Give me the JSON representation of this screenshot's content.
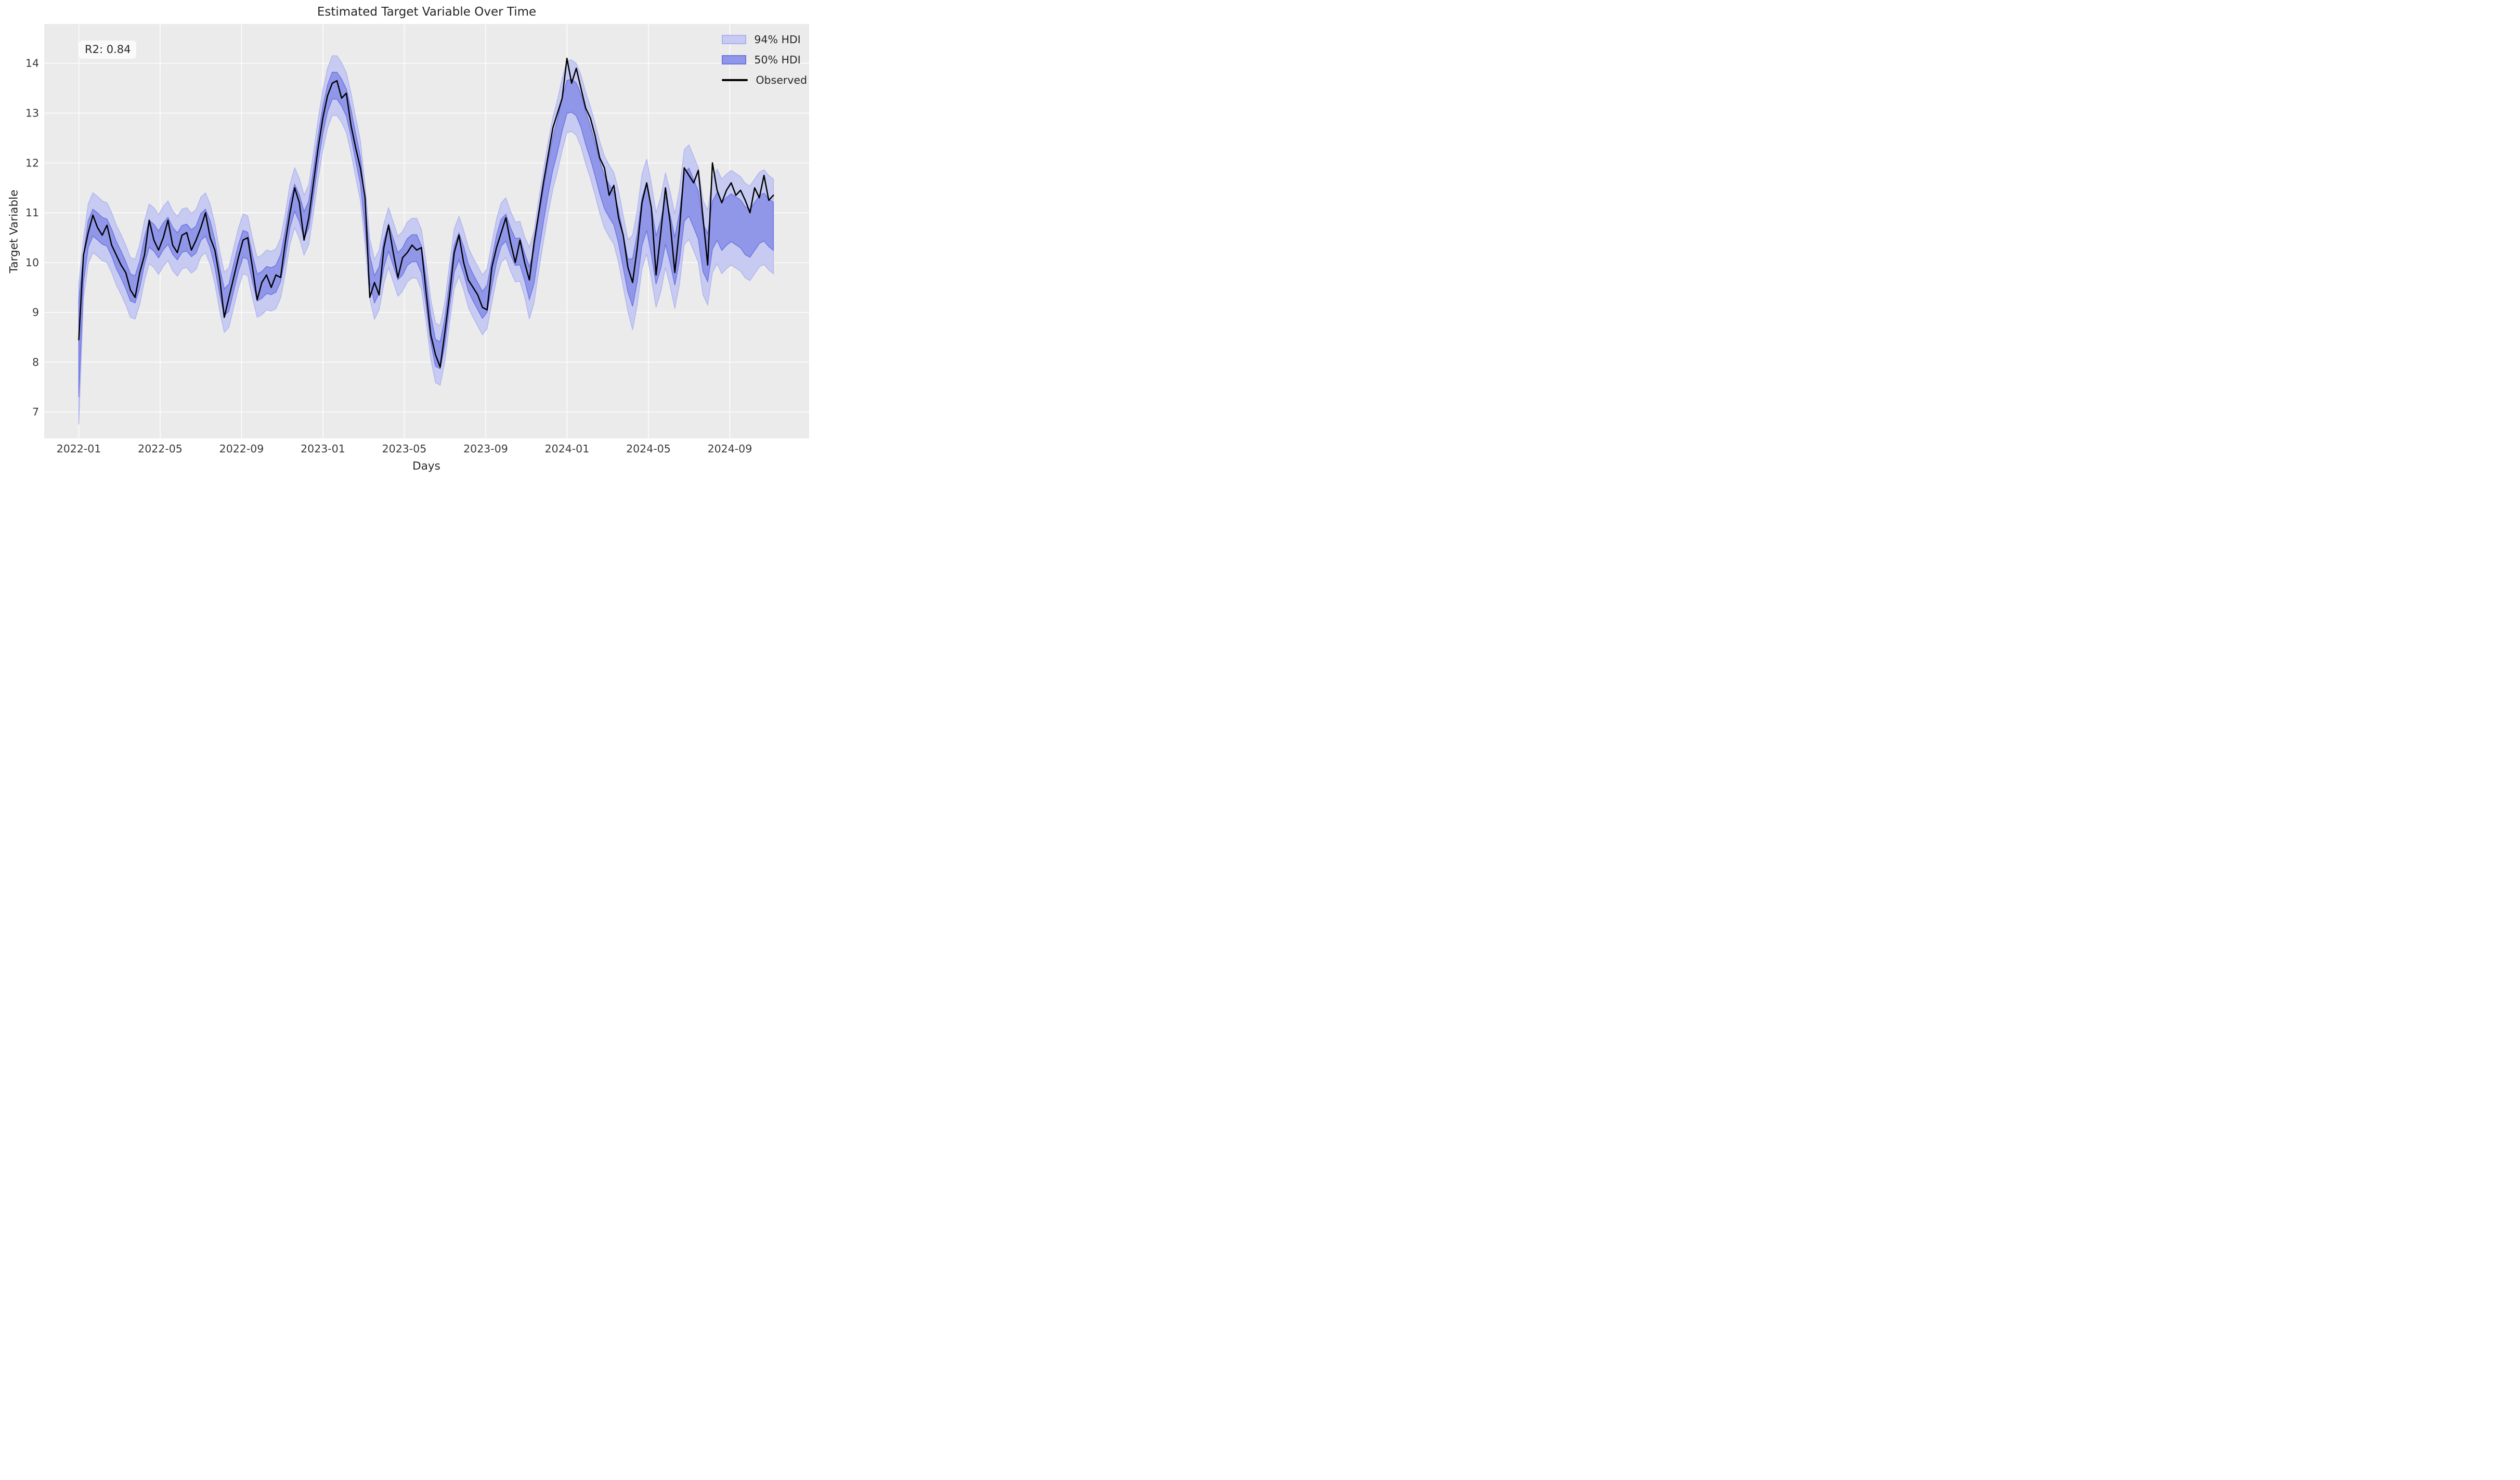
{
  "chart_data": {
    "type": "line-with-hdi-bands",
    "title": "Estimated Target Variable Over Time",
    "xlabel": "Days",
    "ylabel": "Target Variable",
    "annotation": "R2: 0.84",
    "legend": [
      {
        "label": "94% HDI",
        "kind": "band",
        "fill": "#c7caf1",
        "edge": "#adb2ee"
      },
      {
        "label": "50% HDI",
        "kind": "band",
        "fill": "#9096e8",
        "edge": "#6e76e1"
      },
      {
        "label": "Observed",
        "kind": "line",
        "color": "#000000"
      }
    ],
    "grid": true,
    "legend_position": "upper right",
    "x_tick_labels": [
      "2022-01",
      "2022-05",
      "2022-09",
      "2023-01",
      "2023-05",
      "2023-09",
      "2024-01",
      "2024-05",
      "2024-09"
    ],
    "x_tick_months": [
      0,
      4,
      8,
      12,
      16,
      20,
      24,
      28,
      32
    ],
    "y_ticks": [
      7,
      8,
      9,
      10,
      11,
      12,
      13,
      14
    ],
    "xlim_months": [
      -1.7,
      35.9
    ],
    "ylim": [
      6.47,
      14.79
    ],
    "x_start_date": "2022-01-01",
    "x_start_month": 0,
    "x_step_months": 0.2307,
    "observed": [
      8.45,
      10.15,
      10.6,
      10.95,
      10.7,
      10.55,
      10.75,
      10.35,
      10.15,
      9.95,
      9.8,
      9.45,
      9.3,
      9.8,
      10.15,
      10.85,
      10.45,
      10.25,
      10.5,
      10.85,
      10.35,
      10.2,
      10.55,
      10.6,
      10.25,
      10.45,
      10.7,
      11.0,
      10.5,
      10.25,
      9.7,
      8.9,
      9.3,
      9.7,
      10.1,
      10.45,
      10.5,
      9.9,
      9.25,
      9.6,
      9.75,
      9.5,
      9.75,
      9.7,
      10.4,
      11.0,
      11.5,
      11.2,
      10.45,
      10.9,
      11.6,
      12.3,
      12.9,
      13.35,
      13.6,
      13.65,
      13.3,
      13.4,
      12.75,
      12.3,
      11.9,
      11.3,
      9.3,
      9.6,
      9.35,
      10.3,
      10.75,
      10.2,
      9.7,
      10.1,
      10.2,
      10.35,
      10.25,
      10.3,
      9.4,
      8.55,
      8.15,
      7.9,
      8.6,
      9.35,
      10.2,
      10.55,
      10.0,
      9.65,
      9.5,
      9.35,
      9.1,
      9.05,
      9.9,
      10.3,
      10.6,
      10.9,
      10.4,
      10.0,
      10.45,
      10.0,
      9.65,
      10.4,
      11.0,
      11.6,
      12.15,
      12.7,
      13.0,
      13.3,
      14.1,
      13.6,
      13.9,
      13.5,
      13.1,
      12.9,
      12.55,
      12.1,
      11.9,
      11.35,
      11.55,
      10.9,
      10.55,
      9.9,
      9.6,
      10.3,
      11.2,
      11.6,
      11.1,
      9.75,
      10.6,
      11.5,
      10.8,
      9.8,
      10.7,
      11.9,
      11.75,
      11.6,
      11.85,
      10.9,
      9.95,
      12.0,
      11.45,
      11.2,
      11.45,
      11.6,
      11.35,
      11.45,
      11.25,
      11.0,
      11.5,
      11.3,
      11.75,
      11.25,
      11.35
    ],
    "posterior_mean": [
      8.6,
      10.15,
      10.6,
      10.95,
      10.7,
      10.55,
      10.75,
      10.35,
      10.15,
      9.95,
      9.8,
      9.45,
      9.3,
      9.8,
      10.15,
      10.85,
      10.45,
      10.25,
      10.5,
      10.85,
      10.35,
      10.2,
      10.55,
      10.6,
      10.25,
      10.45,
      10.7,
      11.0,
      10.5,
      10.25,
      9.7,
      8.9,
      9.3,
      9.7,
      10.1,
      10.45,
      10.5,
      9.9,
      9.25,
      9.6,
      9.75,
      9.5,
      9.75,
      9.7,
      10.4,
      11.0,
      11.5,
      11.2,
      10.45,
      10.9,
      11.6,
      12.3,
      12.9,
      13.35,
      13.6,
      13.65,
      13.3,
      13.4,
      12.75,
      12.3,
      11.9,
      11.3,
      9.3,
      9.6,
      9.35,
      10.3,
      10.75,
      10.2,
      9.7,
      10.1,
      10.2,
      10.35,
      10.25,
      10.3,
      9.4,
      8.55,
      8.15,
      7.9,
      8.6,
      9.35,
      10.2,
      10.55,
      10.0,
      9.65,
      9.5,
      9.35,
      9.1,
      9.05,
      9.9,
      10.3,
      10.6,
      10.9,
      10.4,
      10.0,
      10.45,
      10.0,
      9.2,
      9.95,
      10.55,
      11.15,
      11.7,
      12.25,
      12.55,
      12.85,
      13.65,
      13.15,
      13.45,
      13.05,
      12.65,
      12.45,
      12.1,
      11.65,
      11.45,
      11.1,
      11.3,
      10.65,
      10.3,
      9.65,
      9.35,
      10.05,
      10.95,
      11.35,
      10.85,
      9.5,
      10.35,
      11.25,
      10.55,
      9.55,
      10.45,
      11.65,
      11.5,
      11.0,
      11.25,
      10.3,
      9.35,
      11.4,
      10.85,
      10.6,
      10.85,
      11.0,
      10.75,
      10.85,
      10.65,
      10.4,
      10.9,
      10.7,
      11.15,
      10.65,
      10.75
    ],
    "hdi50_halfwidth_segments": [
      [
        0,
        0.27
      ],
      [
        96,
        0.33
      ],
      [
        118,
        0.48
      ]
    ],
    "hdi94_halfwidth_segments": [
      [
        0,
        0.6
      ],
      [
        96,
        0.72
      ],
      [
        118,
        0.95
      ]
    ],
    "first_point": {
      "hdi94_low": 6.75,
      "hdi50_low": 7.3
    },
    "colors": {
      "plot_bg": "#ebebeb",
      "grid": "#ffffff",
      "hdi94_fill": "#c7caf1",
      "hdi94_edge": "#adb2ee",
      "hdi50_fill": "#9096e8",
      "hdi50_edge": "#6e76e1",
      "observed_line": "#000000",
      "tick_text": "#3a3a3a",
      "text": "#262626",
      "annotation_bg": "#fafafa"
    }
  }
}
